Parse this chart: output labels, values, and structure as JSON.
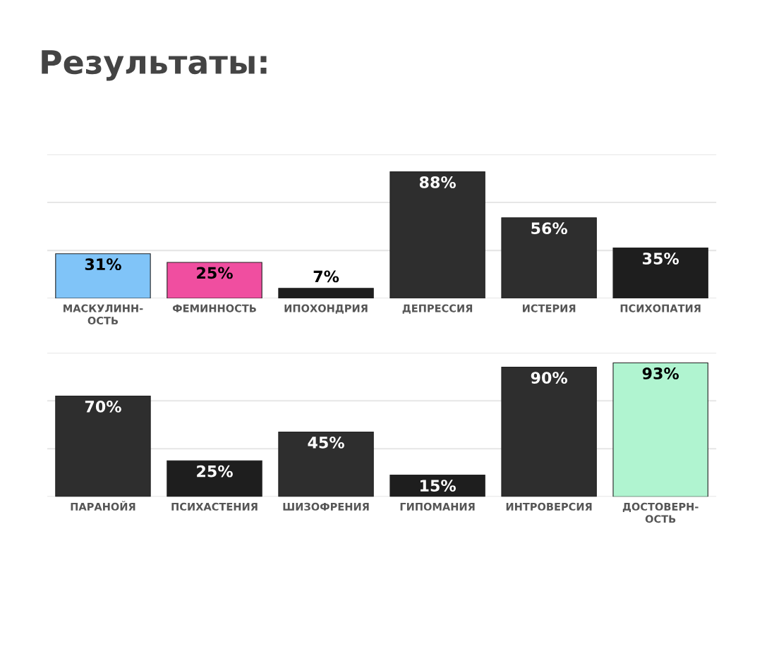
{
  "chart_data": [
    {
      "type": "bar",
      "title": "Результаты:",
      "categories": [
        "МАСКУЛИНН-\nОСТЬ",
        "ФЕМИННОСТЬ",
        "ИПОХОНДРИЯ",
        "ДЕПРЕССИЯ",
        "ИСТЕРИЯ",
        "ПСИХОПАТИЯ"
      ],
      "values": [
        31,
        25,
        7,
        88,
        56,
        35
      ],
      "colors": [
        "#80c4f8",
        "#f04ea0",
        "#1e1e1e",
        "#2e2e2e",
        "#2e2e2e",
        "#1e1e1e"
      ],
      "value_labels": [
        "31%",
        "25%",
        "7%",
        "88%",
        "56%",
        "35%"
      ],
      "ylim": [
        0,
        100
      ],
      "yticks": [
        {
          "value": 0,
          "label": null
        },
        {
          "value": 33.3,
          "label": null
        },
        {
          "value": 66.7,
          "label": null
        },
        {
          "value": 100,
          "label": null
        }
      ],
      "grid": "y",
      "tick_labels": "x"
    },
    {
      "type": "bar",
      "categories": [
        "ПАРАНОЙЯ",
        "ПСИХАСТЕНИЯ",
        "ШИЗОФРЕНИЯ",
        "ГИПОМАНИЯ",
        "ИНТРОВЕРСИЯ",
        "ДОСТОВЕРН-\nОСТЬ"
      ],
      "values": [
        70,
        25,
        45,
        15,
        90,
        93
      ],
      "colors": [
        "#2e2e2e",
        "#1e1e1e",
        "#2e2e2e",
        "#1e1e1e",
        "#2e2e2e",
        "#b0f4d0"
      ],
      "value_labels": [
        "70%",
        "25%",
        "45%",
        "15%",
        "90%",
        "93%"
      ],
      "ylim": [
        0,
        100
      ],
      "yticks": [
        {
          "value": 0,
          "label": null
        },
        {
          "value": 33.3,
          "label": null
        },
        {
          "value": 66.7,
          "label": null
        },
        {
          "value": 100,
          "label": null
        }
      ],
      "grid": "y",
      "tick_labels": "x"
    }
  ]
}
